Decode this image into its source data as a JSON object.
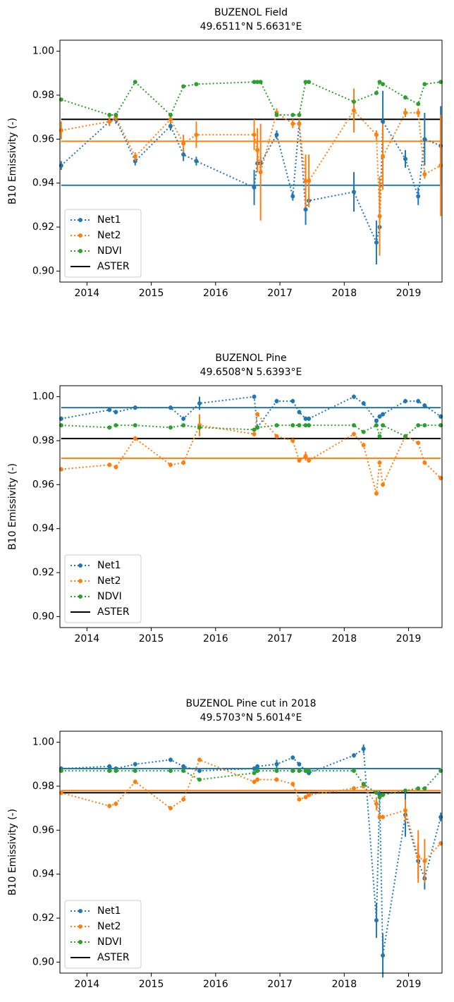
{
  "chart_data": [
    {
      "type": "line",
      "title": "BUZENOL Field",
      "subtitle": "49.6511°N 5.6631°E",
      "ylabel": "B10 Emissivity (-)",
      "x": [
        2013.6,
        2014.35,
        2014.45,
        2014.75,
        2015.3,
        2015.5,
        2015.7,
        2016.6,
        2016.65,
        2016.7,
        2016.95,
        2017.2,
        2017.3,
        2017.4,
        2017.45,
        2018.15,
        2018.5,
        2018.55,
        2018.6,
        2018.95,
        2019.15,
        2019.25,
        2019.5
      ],
      "series": [
        {
          "name": "Net1",
          "color": "#1f77b4",
          "level": 0.939,
          "values": [
            0.948,
            0.968,
            0.969,
            0.95,
            0.966,
            0.953,
            0.95,
            0.938,
            0.949,
            0.949,
            0.962,
            0.934,
            0.967,
            0.928,
            0.932,
            0.936,
            0.913,
            0.92,
            0.968,
            0.951,
            0.934,
            0.96,
            0.957
          ],
          "errors": [
            0.002,
            0.002,
            0.002,
            0.002,
            0.002,
            0.003,
            0.002,
            0.008,
            0.003,
            0.003,
            0.002,
            0.002,
            0.002,
            0.007,
            0.002,
            0.009,
            0.01,
            0.012,
            0.014,
            0.004,
            0.004,
            0.012,
            0.018
          ]
        },
        {
          "name": "Net2",
          "color": "#ff7f0e",
          "level": 0.959,
          "values": [
            0.964,
            0.968,
            0.97,
            0.952,
            0.969,
            0.958,
            0.962,
            0.962,
            0.955,
            0.945,
            0.972,
            0.967,
            0.967,
            0.941,
            0.941,
            0.973,
            0.962,
            0.925,
            0.952,
            0.972,
            0.972,
            0.944,
            0.948
          ],
          "errors": [
            0.004,
            0.002,
            0.002,
            0.002,
            0.002,
            0.004,
            0.006,
            0.007,
            0.01,
            0.022,
            0.002,
            0.002,
            0.002,
            0.012,
            0.012,
            0.01,
            0.002,
            0.018,
            0.015,
            0.002,
            0.002,
            0.002,
            0.023
          ]
        },
        {
          "name": "NDVI",
          "color": "#2ca02c",
          "values": [
            0.978,
            0.971,
            0.971,
            0.986,
            0.971,
            0.984,
            0.985,
            0.986,
            0.986,
            0.986,
            0.971,
            0.971,
            0.971,
            0.986,
            0.986,
            0.977,
            0.981,
            0.986,
            0.985,
            0.979,
            0.976,
            0.985,
            0.986
          ]
        }
      ],
      "aster": {
        "name": "ASTER",
        "color": "#000000",
        "value": 0.969
      },
      "xlim": [
        2013.58,
        2019.52
      ],
      "xticks": [
        2014,
        2015,
        2016,
        2017,
        2018,
        2019
      ],
      "ylim": [
        0.895,
        1.005
      ],
      "yticks": [
        {
          "value": 0.9,
          "label": "0.90"
        },
        0.92,
        0.94,
        0.96,
        0.98,
        {
          "value": 1,
          "label": "1.00"
        }
      ],
      "legend": "lower left"
    },
    {
      "type": "line",
      "title": "BUZENOL Pine",
      "subtitle": "49.6508°N 5.6393°E",
      "ylabel": "B10 Emissivity (-)",
      "x": [
        2013.6,
        2014.35,
        2014.45,
        2014.75,
        2015.3,
        2015.5,
        2015.75,
        2016.6,
        2016.65,
        2016.95,
        2017.2,
        2017.3,
        2017.4,
        2017.45,
        2018.15,
        2018.3,
        2018.5,
        2018.55,
        2018.6,
        2018.95,
        2019.15,
        2019.25,
        2019.5
      ],
      "series": [
        {
          "name": "Net1",
          "color": "#1f77b4",
          "level": 0.995,
          "values": [
            0.99,
            0.994,
            0.993,
            0.995,
            0.995,
            0.99,
            0.997,
            1.0,
            0.986,
            0.998,
            0.998,
            0.993,
            0.99,
            0.99,
            1.0,
            0.997,
            0.989,
            0.991,
            0.992,
            0.998,
            0.998,
            0.996,
            0.991
          ],
          "errors": [
            0.001,
            0.001,
            0.001,
            0.001,
            0.001,
            0.001,
            0.003,
            0.001,
            0.001,
            0.001,
            0.001,
            0.001,
            0.001,
            0.001,
            0.001,
            0.001,
            0.001,
            0.001,
            0.001,
            0.001,
            0.001,
            0.001,
            0.001
          ]
        },
        {
          "name": "Net2",
          "color": "#ff7f0e",
          "level": 0.972,
          "values": [
            0.967,
            0.969,
            0.968,
            0.981,
            0.969,
            0.97,
            0.987,
            0.983,
            0.992,
            0.982,
            0.98,
            0.971,
            0.973,
            0.971,
            0.983,
            0.978,
            0.956,
            0.97,
            0.96,
            0.982,
            0.979,
            0.97,
            0.963
          ],
          "errors": [
            0.001,
            0.001,
            0.001,
            0.001,
            0.001,
            0.001,
            0.005,
            0.001,
            0.001,
            0.001,
            0.001,
            0.001,
            0.002,
            0.001,
            0.001,
            0.001,
            0.001,
            0.001,
            0.001,
            0.001,
            0.001,
            0.001,
            0.001
          ]
        },
        {
          "name": "NDVI",
          "color": "#2ca02c",
          "values": [
            0.987,
            0.986,
            0.987,
            0.987,
            0.986,
            0.987,
            0.986,
            0.985,
            0.986,
            0.987,
            0.987,
            0.987,
            0.987,
            0.987,
            0.987,
            0.984,
            0.987,
            0.982,
            0.987,
            0.982,
            0.987,
            0.987,
            0.987
          ]
        }
      ],
      "aster": {
        "name": "ASTER",
        "color": "#000000",
        "value": 0.981
      },
      "xlim": [
        2013.58,
        2019.52
      ],
      "xticks": [
        2014,
        2015,
        2016,
        2017,
        2018,
        2019
      ],
      "ylim": [
        0.895,
        1.005
      ],
      "yticks": [
        {
          "value": 0.9,
          "label": "0.90"
        },
        0.92,
        0.94,
        0.96,
        0.98,
        {
          "value": 1,
          "label": "1.00"
        }
      ],
      "legend": "lower left"
    },
    {
      "type": "line",
      "title": "BUZENOL Pine cut in 2018",
      "subtitle": "49.5703°N 5.6014°E",
      "ylabel": "B10 Emissivity (-)",
      "x": [
        2013.6,
        2014.35,
        2014.45,
        2014.75,
        2015.3,
        2015.5,
        2015.75,
        2016.6,
        2016.65,
        2016.95,
        2017.2,
        2017.3,
        2017.4,
        2017.45,
        2018.15,
        2018.3,
        2018.5,
        2018.55,
        2018.6,
        2018.95,
        2019.15,
        2019.25,
        2019.5
      ],
      "series": [
        {
          "name": "Net1",
          "color": "#1f77b4",
          "level": 0.988,
          "values": [
            0.988,
            0.989,
            0.988,
            0.99,
            0.992,
            0.989,
            0.987,
            0.988,
            0.989,
            0.99,
            0.993,
            0.99,
            0.987,
            0.986,
            0.994,
            0.997,
            0.919,
            0.976,
            0.903,
            0.967,
            0.946,
            0.938,
            0.966
          ],
          "errors": [
            0.001,
            0.001,
            0.001,
            0.001,
            0.001,
            0.001,
            0.001,
            0.001,
            0.001,
            0.002,
            0.001,
            0.001,
            0.001,
            0.001,
            0.001,
            0.002,
            0.008,
            0.002,
            0.01,
            0.01,
            0.008,
            0.005,
            0.002
          ]
        },
        {
          "name": "Net2",
          "color": "#ff7f0e",
          "level": 0.978,
          "values": [
            0.977,
            0.971,
            0.972,
            0.982,
            0.97,
            0.974,
            0.992,
            0.982,
            0.983,
            0.983,
            0.981,
            0.974,
            0.975,
            0.976,
            0.979,
            0.98,
            0.972,
            0.966,
            0.966,
            0.969,
            0.948,
            0.946,
            0.954
          ],
          "errors": [
            0.001,
            0.001,
            0.001,
            0.001,
            0.001,
            0.001,
            0.001,
            0.001,
            0.001,
            0.001,
            0.001,
            0.001,
            0.001,
            0.001,
            0.001,
            0.001,
            0.003,
            0.001,
            0.001,
            0.005,
            0.012,
            0.01,
            0.001
          ]
        },
        {
          "name": "NDVI",
          "color": "#2ca02c",
          "values": [
            0.987,
            0.987,
            0.987,
            0.987,
            0.987,
            0.987,
            0.983,
            0.986,
            0.987,
            0.987,
            0.987,
            0.987,
            0.987,
            0.987,
            0.987,
            0.981,
            0.977,
            0.975,
            0.976,
            0.978,
            0.979,
            0.979,
            0.987
          ]
        }
      ],
      "aster": {
        "name": "ASTER",
        "color": "#000000",
        "value": 0.977
      },
      "xlim": [
        2013.58,
        2019.52
      ],
      "xticks": [
        2014,
        2015,
        2016,
        2017,
        2018,
        2019
      ],
      "ylim": [
        0.895,
        1.005
      ],
      "yticks": [
        {
          "value": 0.9,
          "label": "0.90"
        },
        0.92,
        0.94,
        0.96,
        0.98,
        {
          "value": 1,
          "label": "1.00"
        }
      ],
      "legend": "lower left"
    }
  ]
}
